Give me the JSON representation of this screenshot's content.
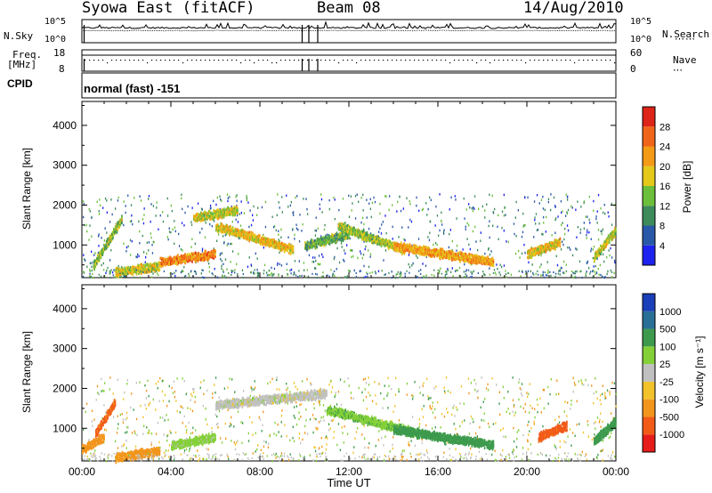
{
  "header": {
    "station": "Syowa East (fitACF)",
    "beam": "Beam 08",
    "date": "14/Aug/2010"
  },
  "top_panels": {
    "nsky_label": "N.Sky",
    "nsky_ticks": [
      "10^5",
      "10^0"
    ],
    "nsearch_label": "N.Search",
    "nsearch_ticks": [
      "10^5",
      "10^0"
    ],
    "freq_label_1": "Freq.",
    "freq_label_2": "[MHz]",
    "freq_ticks": [
      "18",
      "8"
    ],
    "nave_label": "Nave",
    "nave_ticks": [
      "60",
      "0"
    ],
    "cpid_label": "CPID",
    "cpid_value": "normal (fast) -151"
  },
  "colors": {
    "power": [
      "#1e22ee",
      "#2a58a8",
      "#3d8b5a",
      "#6cbf3a",
      "#e4c81a",
      "#f39a16",
      "#f0641a",
      "#dc2418"
    ],
    "velocity": [
      "#e51c1a",
      "#f25a18",
      "#f2951c",
      "#f2c22a",
      "#c0c0c0",
      "#84d039",
      "#3d9a4d",
      "#2a6f96",
      "#1a3fb8"
    ]
  },
  "chart_data": [
    {
      "type": "heatmap",
      "name": "power",
      "ylabel": "Slant Range [km]",
      "y_ticks": [
        1000,
        2000,
        3000,
        4000
      ],
      "ylim": [
        180,
        4600
      ],
      "x_tick_labels": [
        "00:00",
        "04:00",
        "08:00",
        "12:00",
        "16:00",
        "20:00",
        "00:00"
      ],
      "xlim_hours": [
        0,
        24
      ],
      "colorbar": {
        "label": "Power [dB]",
        "ticks": [
          "4",
          "8",
          "12",
          "16",
          "20",
          "24",
          "28"
        ],
        "range": [
          0,
          30
        ]
      },
      "echo_bands": [
        {
          "t_start": 0.5,
          "t_end": 1.8,
          "r_start": 500,
          "r_end": 1700,
          "value": 14
        },
        {
          "t_start": 1.5,
          "t_end": 3.5,
          "r_start": 350,
          "r_end": 500,
          "value": 16
        },
        {
          "t_start": 3.5,
          "t_end": 6.0,
          "r_start": 600,
          "r_end": 800,
          "value": 22
        },
        {
          "t_start": 5.0,
          "t_end": 7.0,
          "r_start": 1700,
          "r_end": 1900,
          "value": 16
        },
        {
          "t_start": 6.0,
          "t_end": 9.5,
          "r_start": 1500,
          "r_end": 900,
          "value": 18
        },
        {
          "t_start": 10.0,
          "t_end": 12.0,
          "r_start": 1000,
          "r_end": 1300,
          "value": 12
        },
        {
          "t_start": 11.5,
          "t_end": 14.5,
          "r_start": 1500,
          "r_end": 900,
          "value": 14
        },
        {
          "t_start": 14.0,
          "t_end": 18.5,
          "r_start": 1000,
          "r_end": 600,
          "value": 20
        },
        {
          "t_start": 20.0,
          "t_end": 21.5,
          "r_start": 800,
          "r_end": 1100,
          "value": 18
        },
        {
          "t_start": 23.0,
          "t_end": 24.0,
          "r_start": 700,
          "r_end": 1400,
          "value": 16
        }
      ]
    },
    {
      "type": "heatmap",
      "name": "velocity",
      "xlabel": "Time UT",
      "ylabel": "Slant Range [km]",
      "y_ticks": [
        1000,
        2000,
        3000,
        4000
      ],
      "ylim": [
        180,
        4600
      ],
      "x_tick_labels": [
        "00:00",
        "04:00",
        "08:00",
        "12:00",
        "16:00",
        "20:00",
        "00:00"
      ],
      "xlim_hours": [
        0,
        24
      ],
      "colorbar": {
        "label": "Velocity [m s⁻¹]",
        "ticks": [
          "1000",
          "500",
          "100",
          "25",
          "-25",
          "-100",
          "-500",
          "-1000"
        ]
      },
      "echo_bands": [
        {
          "t_start": 0.0,
          "t_end": 1.0,
          "r_start": 500,
          "r_end": 800,
          "value": -300
        },
        {
          "t_start": 0.6,
          "t_end": 1.5,
          "r_start": 900,
          "r_end": 1700,
          "value": -600
        },
        {
          "t_start": 1.5,
          "t_end": 3.5,
          "r_start": 300,
          "r_end": 450,
          "value": -150
        },
        {
          "t_start": 4.0,
          "t_end": 6.0,
          "r_start": 600,
          "r_end": 800,
          "value": 50
        },
        {
          "t_start": 6.0,
          "t_end": 11.0,
          "r_start": 1600,
          "r_end": 1900,
          "value": 0
        },
        {
          "t_start": 11.0,
          "t_end": 15.0,
          "r_start": 1500,
          "r_end": 900,
          "value": 80
        },
        {
          "t_start": 14.0,
          "t_end": 18.5,
          "r_start": 1000,
          "r_end": 600,
          "value": 200
        },
        {
          "t_start": 20.5,
          "t_end": 21.8,
          "r_start": 800,
          "r_end": 1100,
          "value": -700
        },
        {
          "t_start": 23.0,
          "t_end": 24.0,
          "r_start": 700,
          "r_end": 1200,
          "value": 300
        }
      ]
    }
  ]
}
